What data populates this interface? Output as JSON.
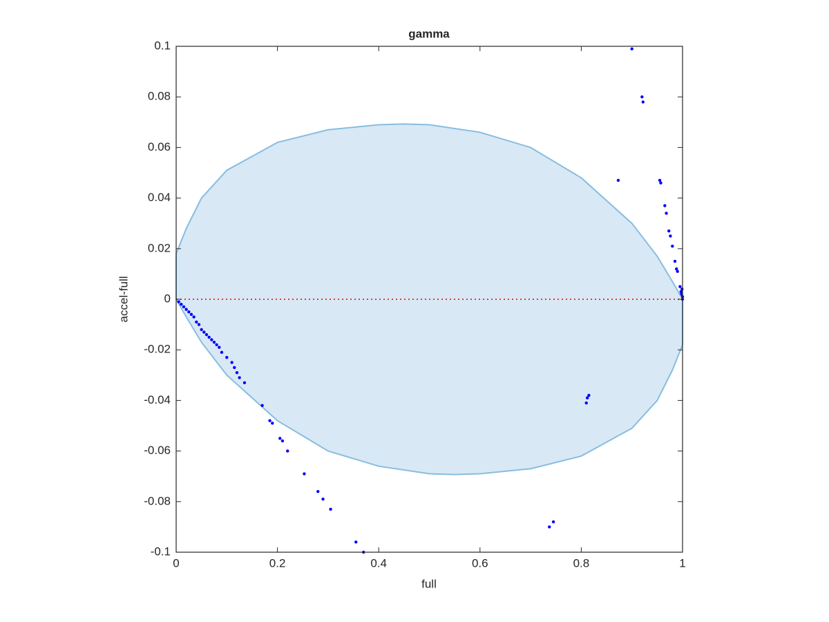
{
  "chart_data": {
    "type": "scatter",
    "title": "gamma",
    "x_label": "full",
    "y_label": "accel-full",
    "xlim": [
      0,
      1
    ],
    "ylim": [
      -0.1,
      0.1
    ],
    "xticks": [
      0,
      0.2,
      0.4,
      0.6,
      0.8,
      1
    ],
    "yticks": [
      -0.1,
      -0.08,
      -0.06,
      -0.04,
      -0.02,
      0,
      0.02,
      0.04,
      0.06,
      0.08,
      0.1
    ],
    "region": {
      "fill": "#d9e8f5",
      "stroke": "#86bde0",
      "x": [
        0,
        0.02,
        0.05,
        0.1,
        0.2,
        0.3,
        0.4,
        0.45,
        0.5,
        0.6,
        0.7,
        0.8,
        0.9,
        0.95,
        0.98,
        1,
        1,
        0.98,
        0.95,
        0.9,
        0.8,
        0.7,
        0.6,
        0.55,
        0.5,
        0.4,
        0.3,
        0.2,
        0.1,
        0.05,
        0.02,
        0
      ],
      "y": [
        0.018,
        0.028,
        0.04,
        0.051,
        0.062,
        0.067,
        0.069,
        0.0693,
        0.069,
        0.066,
        0.06,
        0.048,
        0.03,
        0.017,
        0.007,
        0,
        -0.018,
        -0.028,
        -0.04,
        -0.051,
        -0.062,
        -0.067,
        -0.069,
        -0.0693,
        -0.069,
        -0.066,
        -0.06,
        -0.048,
        -0.03,
        -0.017,
        -0.007,
        0
      ]
    },
    "reference_line": {
      "y": 0,
      "color": "#e8392f"
    },
    "series": [
      {
        "color": "#0000ff",
        "x": [
          0.005,
          0.01,
          0.015,
          0.02,
          0.025,
          0.03,
          0.035,
          0.04,
          0.045,
          0.05,
          0.055,
          0.06,
          0.065,
          0.07,
          0.075,
          0.08,
          0.085,
          0.09,
          0.1,
          0.11,
          0.115,
          0.12,
          0.125,
          0.135,
          0.17,
          0.185,
          0.19,
          0.205,
          0.21,
          0.22,
          0.253,
          0.28,
          0.29,
          0.305,
          0.355,
          0.37,
          0.737,
          0.745,
          0.81,
          0.812,
          0.815,
          0.873,
          0.9,
          0.92,
          0.922,
          0.955,
          0.957,
          0.965,
          0.968,
          0.973,
          0.976,
          0.98,
          0.985,
          0.988,
          0.99,
          0.995,
          0.997,
          0.998,
          0.999,
          1,
          1
        ],
        "values": [
          -0.001,
          -0.002,
          -0.003,
          -0.004,
          -0.005,
          -0.006,
          -0.007,
          -0.009,
          -0.01,
          -0.012,
          -0.013,
          -0.014,
          -0.015,
          -0.016,
          -0.017,
          -0.018,
          -0.019,
          -0.021,
          -0.023,
          -0.025,
          -0.027,
          -0.029,
          -0.031,
          -0.033,
          -0.042,
          -0.048,
          -0.049,
          -0.055,
          -0.056,
          -0.06,
          -0.069,
          -0.076,
          -0.079,
          -0.083,
          -0.096,
          -0.1,
          -0.09,
          -0.088,
          -0.041,
          -0.039,
          -0.038,
          0.047,
          0.099,
          0.08,
          0.078,
          0.047,
          0.046,
          0.037,
          0.034,
          0.027,
          0.025,
          0.021,
          0.015,
          0.012,
          0.011,
          0.005,
          0.003,
          0.002,
          0.004,
          0.001,
          0
        ]
      }
    ]
  }
}
